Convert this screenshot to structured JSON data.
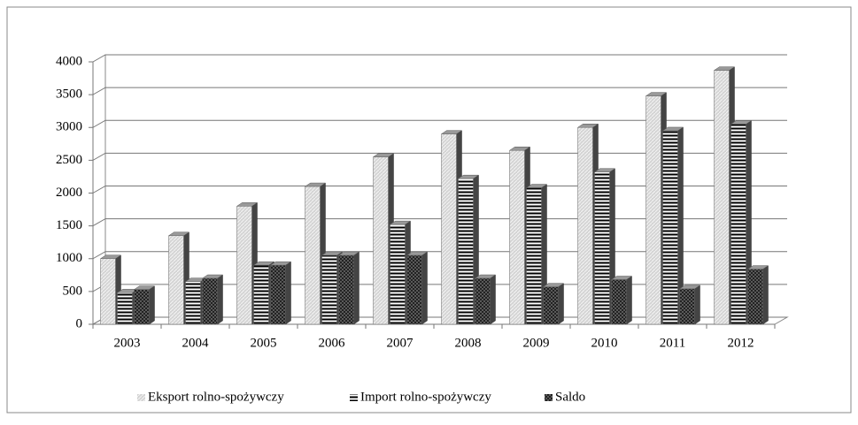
{
  "chart_data": {
    "type": "bar",
    "categories": [
      "2003",
      "2004",
      "2005",
      "2006",
      "2007",
      "2008",
      "2009",
      "2010",
      "2011",
      "2012"
    ],
    "series": [
      {
        "name": "Eksport rolno-spożywczy",
        "color": "#d4d4d4",
        "values": [
          1000,
          1350,
          1800,
          2100,
          2550,
          2900,
          2650,
          3000,
          3480,
          3870
        ]
      },
      {
        "name": "Import rolno-spożywczy",
        "color": "#ffffff",
        "values": [
          480,
          650,
          900,
          1050,
          1520,
          2220,
          2080,
          2320,
          2950,
          3050
        ]
      },
      {
        "name": "Saldo",
        "color": "#5a5a5a",
        "values": [
          530,
          700,
          900,
          1050,
          1050,
          700,
          570,
          680,
          540,
          840
        ]
      }
    ],
    "ylim": [
      0,
      4000
    ],
    "yticks": [
      0,
      500,
      1000,
      1500,
      2000,
      2500,
      3000,
      3500,
      4000
    ],
    "grid": true,
    "legend": "bottom"
  }
}
